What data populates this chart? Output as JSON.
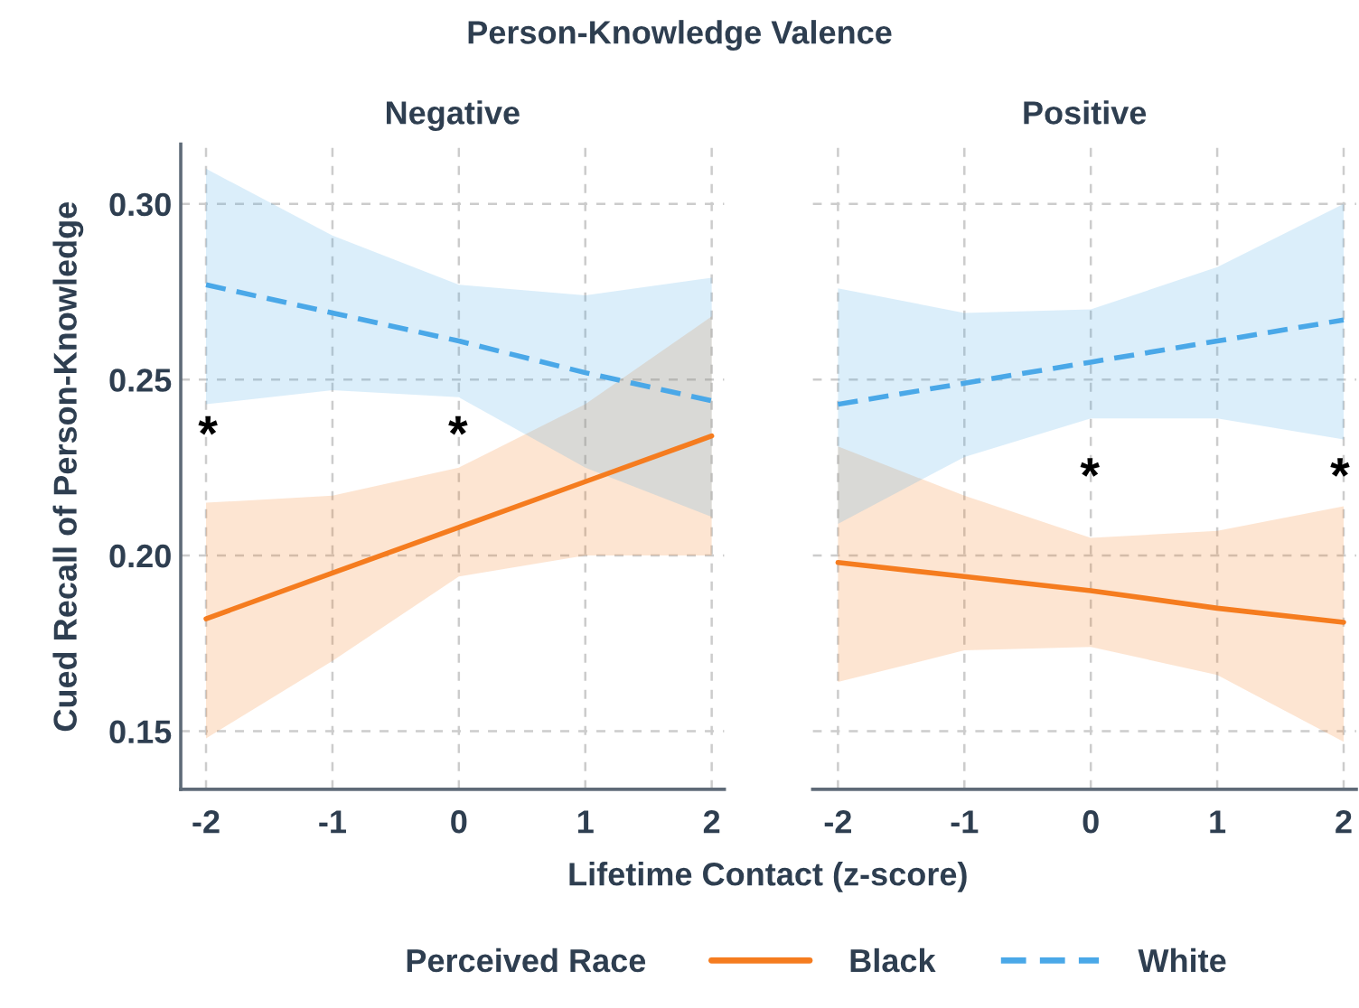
{
  "chart_data": [
    {
      "type": "line",
      "title": "Person-Knowledge Valence",
      "subtitle": "Negative",
      "xlabel": "Lifetime Contact (z-score)",
      "ylabel": "Cued Recall of Person-Knowledge",
      "legend_title": "Perceived Race",
      "legend": "bottom",
      "grid": true,
      "x": [
        -2,
        -1,
        0,
        1,
        2
      ],
      "xlim": [
        -2.2,
        2.1
      ],
      "xticks": [
        -2,
        -1,
        0,
        1,
        2
      ],
      "ylim": [
        0.1335,
        0.317
      ],
      "yticks": [
        {
          "value": 0.15,
          "label": "0.15"
        },
        {
          "value": 0.2,
          "label": "0.20"
        },
        {
          "value": 0.25,
          "label": "0.25"
        },
        {
          "value": 0.3,
          "label": "0.30"
        }
      ],
      "series": [
        {
          "name": "Black",
          "color": "#f57c1f",
          "line_style": "solid",
          "values": [
            0.182,
            0.195,
            0.208,
            0.221,
            0.234
          ],
          "lower": [
            0.148,
            0.17,
            0.194,
            0.2,
            0.2
          ],
          "upper": [
            0.215,
            0.217,
            0.225,
            0.243,
            0.268
          ]
        },
        {
          "name": "White",
          "color": "#4aa8e8",
          "line_style": "dashed",
          "values": [
            0.277,
            0.269,
            0.261,
            0.252,
            0.244
          ],
          "lower": [
            0.243,
            0.247,
            0.245,
            0.225,
            0.211
          ],
          "upper": [
            0.31,
            0.291,
            0.277,
            0.274,
            0.279
          ]
        }
      ],
      "annotations": [
        "*",
        "*"
      ]
    },
    {
      "type": "line",
      "subtitle": "Positive",
      "grid": true,
      "tick_labels": "x",
      "x": [
        -2,
        -1,
        0,
        1,
        2
      ],
      "xlim": [
        -2.2,
        2.1
      ],
      "xticks": [
        -2,
        -1,
        0,
        1,
        2
      ],
      "ylim": [
        0.1335,
        0.317
      ],
      "yticks": [
        0.15,
        0.2,
        0.25,
        0.3
      ],
      "series": [
        {
          "color": "#f57c1f",
          "line_style": "solid",
          "values": [
            0.198,
            0.194,
            0.19,
            0.185,
            0.181
          ],
          "lower": [
            0.164,
            0.173,
            0.174,
            0.166,
            0.147
          ],
          "upper": [
            0.231,
            0.217,
            0.205,
            0.207,
            0.214
          ]
        },
        {
          "color": "#4aa8e8",
          "line_style": "dashed",
          "values": [
            0.243,
            0.249,
            0.255,
            0.261,
            0.267
          ],
          "lower": [
            0.209,
            0.228,
            0.239,
            0.239,
            0.233
          ],
          "upper": [
            0.276,
            0.269,
            0.27,
            0.282,
            0.3
          ]
        }
      ],
      "annotations": [
        "*",
        "*"
      ]
    }
  ]
}
